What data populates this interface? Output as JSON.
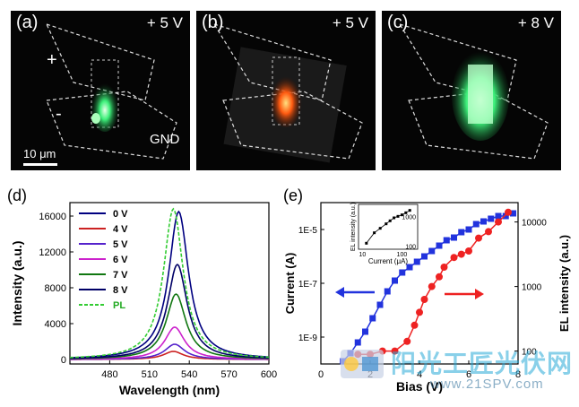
{
  "panels": [
    {
      "label": "(a)",
      "voltage": "+ 5 V",
      "plus": "+",
      "minus": "-",
      "gnd": "GND",
      "scalebar": "10 μm"
    },
    {
      "label": "(b)",
      "voltage": "+ 5 V"
    },
    {
      "label": "(c)",
      "voltage": "+ 8 V"
    }
  ],
  "colors": {
    "green_glow": "#3df07a",
    "red_glow": "#ff5a10",
    "blue_series": "#2233dd",
    "red_series": "#ee2222"
  },
  "chart_data": [
    {
      "panel_label": "(d)",
      "type": "line",
      "xlabel": "Wavelength (nm)",
      "ylabel": "Intensity (a.u.)",
      "xlim": [
        450,
        600
      ],
      "ylim": [
        -500,
        17500
      ],
      "xticks": [
        480,
        510,
        540,
        570,
        600
      ],
      "yticks": [
        0,
        4000,
        8000,
        12000,
        16000
      ],
      "series": [
        {
          "name": "0 V",
          "color": "#000080",
          "dash": false,
          "peak_x": 532,
          "peak_y": 16500
        },
        {
          "name": "4 V",
          "color": "#cc2222",
          "dash": false,
          "peak_x": 528,
          "peak_y": 900
        },
        {
          "name": "5 V",
          "color": "#5522cc",
          "dash": false,
          "peak_x": 529,
          "peak_y": 1700
        },
        {
          "name": "6 V",
          "color": "#cc22cc",
          "dash": false,
          "peak_x": 529,
          "peak_y": 3600
        },
        {
          "name": "7 V",
          "color": "#117711",
          "dash": false,
          "peak_x": 530,
          "peak_y": 7300
        },
        {
          "name": "8 V",
          "color": "#000066",
          "dash": false,
          "peak_x": 531,
          "peak_y": 10600
        },
        {
          "name": "PL",
          "color": "#33cc33",
          "dash": true,
          "peak_x": 528,
          "peak_y": 16800
        }
      ]
    },
    {
      "panel_label": "(e)",
      "type": "scatter",
      "xlabel": "Bias (V)",
      "ylabel_left": "Current (A)",
      "ylabel_right": "EL intensity (a.u.)",
      "xlim": [
        0,
        8
      ],
      "xticks": [
        "0",
        "2",
        "4",
        "6",
        "8"
      ],
      "y_left_log_range": [
        -10,
        -4
      ],
      "y_left_ticks": [
        "1E-9",
        "1E-7",
        "1E-5"
      ],
      "y_right_log_range": [
        1.8,
        4.3
      ],
      "y_right_ticks": [
        "100",
        "1000",
        "10000"
      ],
      "current": {
        "x": [
          0.9,
          1.2,
          1.5,
          1.8,
          2.1,
          2.4,
          2.7,
          3.0,
          3.3,
          3.6,
          3.9,
          4.2,
          4.5,
          4.8,
          5.1,
          5.4,
          5.7,
          6.0,
          6.3,
          6.6,
          6.9,
          7.2,
          7.5,
          7.8
        ],
        "y_log": [
          -9.9,
          -9.6,
          -9.2,
          -8.8,
          -8.3,
          -7.8,
          -7.3,
          -6.9,
          -6.6,
          -6.4,
          -6.2,
          -6.0,
          -5.8,
          -5.6,
          -5.4,
          -5.3,
          -5.1,
          -5.0,
          -4.8,
          -4.7,
          -4.6,
          -4.5,
          -4.5,
          -4.4
        ]
      },
      "el": {
        "x": [
          1.5,
          2.0,
          2.5,
          3.0,
          3.5,
          3.8,
          4.0,
          4.2,
          4.5,
          4.8,
          5.0,
          5.4,
          5.7,
          6.0,
          6.4,
          6.8,
          7.2,
          7.6
        ],
        "y_log": [
          1.95,
          1.95,
          2.0,
          2.0,
          2.15,
          2.4,
          2.6,
          2.8,
          3.0,
          3.15,
          3.3,
          3.45,
          3.5,
          3.55,
          3.75,
          3.85,
          4.0,
          4.15
        ]
      },
      "inset": {
        "xlabel": "Current (μA)",
        "ylabel": "EL intensity (a.u.)",
        "xtick_labels": [
          "10",
          "100"
        ],
        "ytick_labels": [
          "100",
          "1000"
        ],
        "x_log": [
          1.1,
          1.3,
          1.45,
          1.6,
          1.7,
          1.8,
          1.9,
          2.0,
          2.1,
          2.2
        ],
        "y_log": [
          2.1,
          2.45,
          2.6,
          2.75,
          2.85,
          2.95,
          3.0,
          3.05,
          3.12,
          3.2
        ]
      }
    }
  ],
  "watermark": {
    "cn": "阳光工匠光伏网",
    "url": "www.21SPV.com"
  }
}
